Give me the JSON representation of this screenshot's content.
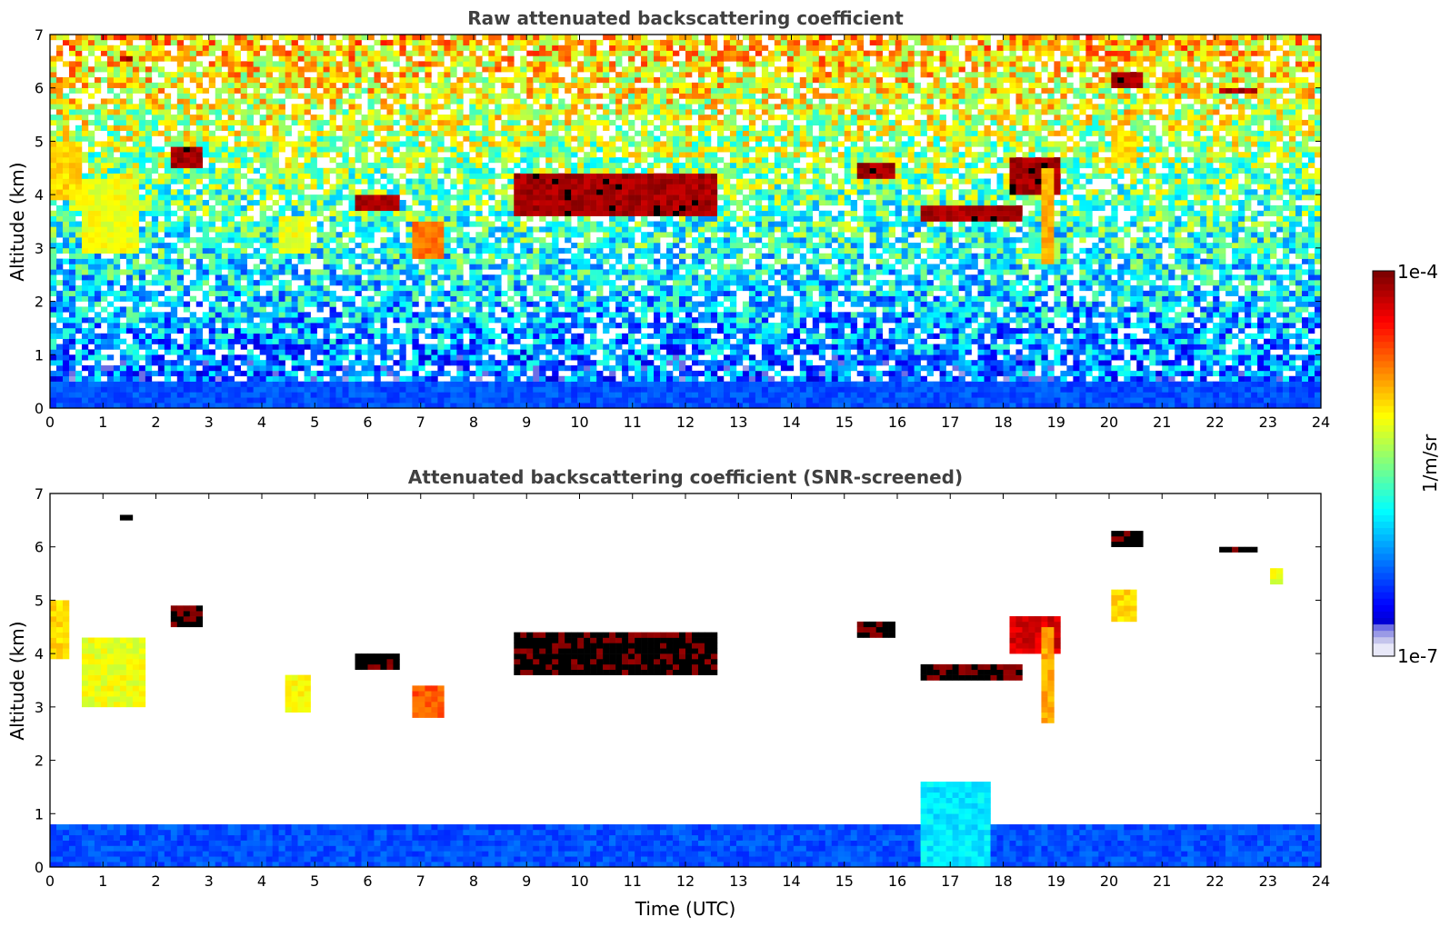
{
  "chart_data": {
    "type": "heatmap",
    "colorbar": {
      "label": "1/m/sr",
      "min_label": "1e-7",
      "max_label": "1e-4",
      "scale": "log",
      "range": [
        1e-07,
        0.0001
      ],
      "colormap": "jet-like",
      "low_end_colors": [
        "#e8e8f8",
        "#c4c4ec",
        "#9a9ae6",
        "#6e6ee4"
      ]
    },
    "panels": [
      {
        "title": "Raw attenuated backscattering coefficient",
        "ylabel": "Altitude (km)",
        "xlabel": "",
        "xlim": [
          0,
          24
        ],
        "ylim": [
          0,
          7
        ],
        "xticks": [
          "0",
          "1",
          "2",
          "3",
          "4",
          "5",
          "6",
          "7",
          "8",
          "9",
          "10",
          "11",
          "12",
          "13",
          "14",
          "15",
          "16",
          "17",
          "18",
          "19",
          "20",
          "21",
          "22",
          "23",
          "24"
        ],
        "yticks": [
          "0",
          "1",
          "2",
          "3",
          "4",
          "5",
          "6",
          "7"
        ],
        "features": [
          {
            "kind": "background",
            "description_level": "noise",
            "x": [
              0,
              24
            ],
            "y": [
              0.5,
              7
            ],
            "level": 0.45
          },
          {
            "kind": "boundary-layer",
            "x": [
              0,
              24
            ],
            "y": [
              0,
              0.5
            ],
            "level": 0.2
          },
          {
            "kind": "cloud",
            "x": [
              1.3,
              1.6
            ],
            "y": [
              6.5,
              6.6
            ],
            "level": 0.95
          },
          {
            "kind": "cloud",
            "x": [
              2.3,
              2.85
            ],
            "y": [
              4.5,
              4.85
            ],
            "level": 0.95
          },
          {
            "kind": "cloud",
            "x": [
              5.7,
              6.6
            ],
            "y": [
              3.7,
              4.05
            ],
            "level": 0.95
          },
          {
            "kind": "cloud",
            "x": [
              8.8,
              12.6
            ],
            "y": [
              3.6,
              4.4
            ],
            "level": 0.95
          },
          {
            "kind": "cloud",
            "x": [
              15.2,
              15.9
            ],
            "y": [
              4.3,
              4.6
            ],
            "level": 0.95
          },
          {
            "kind": "cloud",
            "x": [
              16.4,
              18.4
            ],
            "y": [
              3.5,
              3.8
            ],
            "level": 0.95
          },
          {
            "kind": "cloud",
            "x": [
              18.1,
              19.1
            ],
            "y": [
              4.0,
              4.7
            ],
            "level": 0.95
          },
          {
            "kind": "cloud",
            "x": [
              20.0,
              20.6
            ],
            "y": [
              6.0,
              6.25
            ],
            "level": 0.95
          },
          {
            "kind": "cloud",
            "x": [
              22.1,
              22.8
            ],
            "y": [
              5.9,
              6.05
            ],
            "level": 0.95
          },
          {
            "kind": "precipitation",
            "x": [
              0,
              0.6
            ],
            "y": [
              3.9,
              5.0
            ],
            "level": 0.65
          },
          {
            "kind": "precipitation",
            "x": [
              0.6,
              1.7
            ],
            "y": [
              2.9,
              4.3
            ],
            "level": 0.6
          },
          {
            "kind": "precipitation",
            "x": [
              4.3,
              4.9
            ],
            "y": [
              2.9,
              3.6
            ],
            "level": 0.6
          },
          {
            "kind": "precipitation",
            "x": [
              6.8,
              7.4
            ],
            "y": [
              2.8,
              3.5
            ],
            "level": 0.75
          },
          {
            "kind": "precipitation",
            "x": [
              18.7,
              18.95
            ],
            "y": [
              2.7,
              4.5
            ],
            "level": 0.7
          },
          {
            "kind": "precipitation",
            "x": [
              20.1,
              20.5
            ],
            "y": [
              4.6,
              5.2
            ],
            "level": 0.65
          }
        ]
      },
      {
        "title": "Attenuated backscattering coefficient (SNR-screened)",
        "ylabel": "Altitude (km)",
        "xlabel": "Time (UTC)",
        "xlim": [
          0,
          24
        ],
        "ylim": [
          0,
          7
        ],
        "xticks": [
          "0",
          "1",
          "2",
          "3",
          "4",
          "5",
          "6",
          "7",
          "8",
          "9",
          "10",
          "11",
          "12",
          "13",
          "14",
          "15",
          "16",
          "17",
          "18",
          "19",
          "20",
          "21",
          "22",
          "23",
          "24"
        ],
        "yticks": [
          "0",
          "1",
          "2",
          "3",
          "4",
          "5",
          "6",
          "7"
        ],
        "features": [
          {
            "kind": "boundary-layer",
            "x": [
              0,
              24
            ],
            "y": [
              0,
              0.8
            ],
            "level": 0.2
          },
          {
            "kind": "aerosol",
            "x": [
              16.4,
              17.8
            ],
            "y": [
              0,
              1.6
            ],
            "level": 0.35
          },
          {
            "kind": "cloud",
            "x": [
              1.3,
              1.6
            ],
            "y": [
              6.5,
              6.6
            ],
            "level": 1.0
          },
          {
            "kind": "cloud",
            "x": [
              2.3,
              2.85
            ],
            "y": [
              4.5,
              4.85
            ],
            "level": 1.0
          },
          {
            "kind": "cloud",
            "x": [
              5.7,
              6.6
            ],
            "y": [
              3.7,
              4.05
            ],
            "level": 1.0
          },
          {
            "kind": "cloud",
            "x": [
              8.8,
              12.6
            ],
            "y": [
              3.6,
              4.4
            ],
            "level": 1.0
          },
          {
            "kind": "cloud",
            "x": [
              15.2,
              15.9
            ],
            "y": [
              4.3,
              4.6
            ],
            "level": 1.0
          },
          {
            "kind": "cloud",
            "x": [
              16.4,
              18.4
            ],
            "y": [
              3.5,
              3.8
            ],
            "level": 1.0
          },
          {
            "kind": "cloud",
            "x": [
              18.1,
              19.1
            ],
            "y": [
              4.0,
              4.7
            ],
            "level": 0.9
          },
          {
            "kind": "cloud",
            "x": [
              20.0,
              20.6
            ],
            "y": [
              6.0,
              6.25
            ],
            "level": 1.0
          },
          {
            "kind": "cloud",
            "x": [
              22.1,
              22.8
            ],
            "y": [
              5.9,
              6.05
            ],
            "level": 1.0
          },
          {
            "kind": "precipitation",
            "x": [
              0,
              0.4
            ],
            "y": [
              3.9,
              5.0
            ],
            "level": 0.65
          },
          {
            "kind": "precipitation",
            "x": [
              0.6,
              1.8
            ],
            "y": [
              3.0,
              4.3
            ],
            "level": 0.6
          },
          {
            "kind": "precipitation",
            "x": [
              4.4,
              4.9
            ],
            "y": [
              2.9,
              3.6
            ],
            "level": 0.62
          },
          {
            "kind": "precipitation",
            "x": [
              6.8,
              7.4
            ],
            "y": [
              2.8,
              3.4
            ],
            "level": 0.78
          },
          {
            "kind": "precipitation",
            "x": [
              18.7,
              18.95
            ],
            "y": [
              2.7,
              4.5
            ],
            "level": 0.7
          },
          {
            "kind": "precipitation",
            "x": [
              20.1,
              20.5
            ],
            "y": [
              4.6,
              5.2
            ],
            "level": 0.65
          },
          {
            "kind": "precipitation",
            "x": [
              23.1,
              23.3
            ],
            "y": [
              5.3,
              5.6
            ],
            "level": 0.6
          }
        ]
      }
    ]
  }
}
